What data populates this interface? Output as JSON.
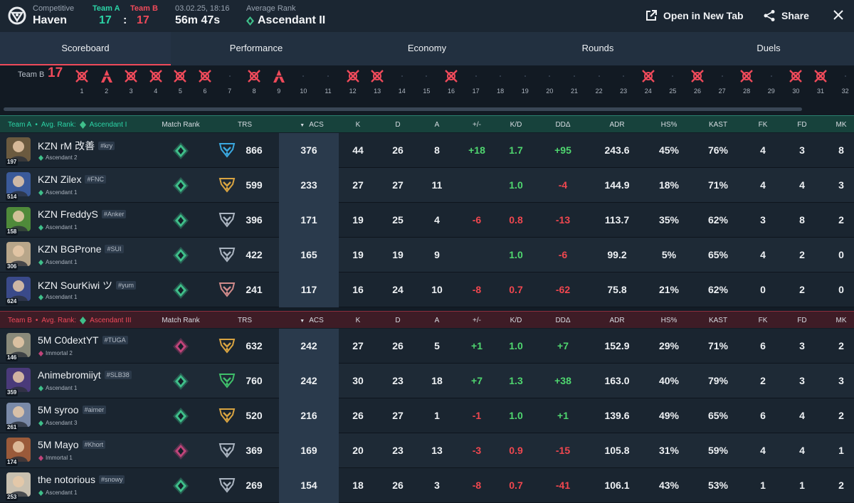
{
  "header": {
    "mode": "Competitive",
    "map": "Haven",
    "team_a_label": "Team A",
    "team_a_score": "17",
    "colon": ":",
    "team_b_label": "Team B",
    "team_b_score": "17",
    "date": "03.02.25, 18:16",
    "duration": "56m 47s",
    "avg_rank_label": "Average Rank",
    "avg_rank": "Ascendant II",
    "open_new_tab": "Open in New Tab",
    "share": "Share"
  },
  "tabs": [
    "Scoreboard",
    "Performance",
    "Economy",
    "Rounds",
    "Duels"
  ],
  "rounds": {
    "team_label": "Team B",
    "score": "17",
    "numbers": [
      "1",
      "2",
      "3",
      "4",
      "5",
      "6",
      "7",
      "8",
      "9",
      "10",
      "11",
      "12",
      "13",
      "14",
      "15",
      "16",
      "17",
      "18",
      "19",
      "20",
      "21",
      "22",
      "23",
      "24",
      "25",
      "26",
      "27",
      "28",
      "29",
      "30",
      "31",
      "32"
    ],
    "team_b_wins": [
      "elim",
      "defuse",
      "elim",
      "elim",
      "elim",
      "elim",
      "",
      "elim",
      "defuse",
      "",
      "",
      "elim",
      "elim",
      "",
      "",
      "elim",
      "",
      "",
      "",
      "",
      "",
      "",
      "",
      "elim",
      "",
      "elim",
      "",
      "elim",
      "",
      "elim",
      "elim",
      ""
    ]
  },
  "columns": {
    "match_rank": "Match Rank",
    "trs": "TRS",
    "acs": "ACS",
    "k": "K",
    "d": "D",
    "a": "A",
    "pm": "+/-",
    "kd": "K/D",
    "dd": "DDΔ",
    "adr": "ADR",
    "hs": "HS%",
    "kast": "KAST",
    "fk": "FK",
    "fd": "FD",
    "mk": "MK"
  },
  "team_a": {
    "label": "Team A",
    "avg_label": "Avg. Rank:",
    "avg_rank": "Ascendant I",
    "players": [
      {
        "name": "KZN rM 改善",
        "tag": "#kry",
        "rank": "Ascendant 2",
        "level": "197",
        "trs": "866",
        "acs": "376",
        "k": "44",
        "d": "26",
        "a": "8",
        "pm": "+18",
        "kd": "1.7",
        "dd": "+95",
        "adr": "243.6",
        "hs": "45%",
        "kast": "76%",
        "fk": "4",
        "fd": "3",
        "mk": "8",
        "rank_color": "#3fbf8a",
        "trs_color": "#3aa8e0",
        "av_color": "#6b5a3f"
      },
      {
        "name": "KZN Zilex",
        "tag": "#FNC",
        "rank": "Ascendant 1",
        "level": "514",
        "trs": "599",
        "acs": "233",
        "k": "27",
        "d": "27",
        "a": "11",
        "pm": "",
        "kd": "1.0",
        "dd": "-4",
        "adr": "144.9",
        "hs": "18%",
        "kast": "71%",
        "fk": "4",
        "fd": "4",
        "mk": "3",
        "rank_color": "#3fbf8a",
        "trs_color": "#d9a441",
        "av_color": "#3a5a9a"
      },
      {
        "name": "KZN FreddyS",
        "tag": "#Anker",
        "rank": "Ascendant 1",
        "level": "158",
        "trs": "396",
        "acs": "171",
        "k": "19",
        "d": "25",
        "a": "4",
        "pm": "-6",
        "kd": "0.8",
        "dd": "-13",
        "adr": "113.7",
        "hs": "35%",
        "kast": "62%",
        "fk": "3",
        "fd": "8",
        "mk": "2",
        "rank_color": "#3fbf8a",
        "trs_color": "#aab4c0",
        "av_color": "#4f8a3a"
      },
      {
        "name": "KZN BGProne",
        "tag": "#SUI",
        "rank": "Ascendant 1",
        "level": "306",
        "trs": "422",
        "acs": "165",
        "k": "19",
        "d": "19",
        "a": "9",
        "pm": "",
        "kd": "1.0",
        "dd": "-6",
        "adr": "99.2",
        "hs": "5%",
        "kast": "65%",
        "fk": "4",
        "fd": "2",
        "mk": "0",
        "rank_color": "#3fbf8a",
        "trs_color": "#aab4c0",
        "av_color": "#b8a68a"
      },
      {
        "name": "KZN SourKiwi ツ",
        "tag": "#yum",
        "rank": "Ascendant 1",
        "level": "624",
        "trs": "241",
        "acs": "117",
        "k": "16",
        "d": "24",
        "a": "10",
        "pm": "-8",
        "kd": "0.7",
        "dd": "-62",
        "adr": "75.8",
        "hs": "21%",
        "kast": "62%",
        "fk": "0",
        "fd": "2",
        "mk": "0",
        "rank_color": "#3fbf8a",
        "trs_color": "#d08a8a",
        "av_color": "#3a4a8a"
      }
    ]
  },
  "team_b": {
    "label": "Team B",
    "avg_label": "Avg. Rank:",
    "avg_rank": "Ascendant III",
    "players": [
      {
        "name": "5M C0dextYT",
        "tag": "#TUGA",
        "rank": "Immortal 2",
        "level": "146",
        "trs": "632",
        "acs": "242",
        "k": "27",
        "d": "26",
        "a": "5",
        "pm": "+1",
        "kd": "1.0",
        "dd": "+7",
        "adr": "152.9",
        "hs": "29%",
        "kast": "71%",
        "fk": "6",
        "fd": "3",
        "mk": "2",
        "rank_color": "#c0447a",
        "trs_color": "#d9a441",
        "av_color": "#8a8a7a"
      },
      {
        "name": "Animebromiiyt",
        "tag": "#SLB38",
        "rank": "Ascendant 1",
        "level": "359",
        "trs": "760",
        "acs": "242",
        "k": "30",
        "d": "23",
        "a": "18",
        "pm": "+7",
        "kd": "1.3",
        "dd": "+38",
        "adr": "163.0",
        "hs": "40%",
        "kast": "79%",
        "fk": "2",
        "fd": "3",
        "mk": "3",
        "rank_color": "#3fbf8a",
        "trs_color": "#3fbf6a",
        "av_color": "#4a3a7a"
      },
      {
        "name": "5M syroo",
        "tag": "#aimer",
        "rank": "Ascendant 3",
        "level": "261",
        "trs": "520",
        "acs": "216",
        "k": "26",
        "d": "27",
        "a": "1",
        "pm": "-1",
        "kd": "1.0",
        "dd": "+1",
        "adr": "139.6",
        "hs": "49%",
        "kast": "65%",
        "fk": "6",
        "fd": "4",
        "mk": "2",
        "rank_color": "#3fbf8a",
        "trs_color": "#d9a441",
        "av_color": "#7a8aa8"
      },
      {
        "name": "5M Mayo",
        "tag": "#Khort",
        "rank": "Immortal 1",
        "level": "174",
        "trs": "369",
        "acs": "169",
        "k": "20",
        "d": "23",
        "a": "13",
        "pm": "-3",
        "kd": "0.9",
        "dd": "-15",
        "adr": "105.8",
        "hs": "31%",
        "kast": "59%",
        "fk": "4",
        "fd": "4",
        "mk": "1",
        "rank_color": "#c0447a",
        "trs_color": "#aab4c0",
        "av_color": "#9a5a3a"
      },
      {
        "name": "the notorious",
        "tag": "#snowy",
        "rank": "Ascendant 1",
        "level": "253",
        "trs": "269",
        "acs": "154",
        "k": "18",
        "d": "26",
        "a": "3",
        "pm": "-8",
        "kd": "0.7",
        "dd": "-41",
        "adr": "106.1",
        "hs": "43%",
        "kast": "53%",
        "fk": "1",
        "fd": "1",
        "mk": "2",
        "rank_color": "#3fbf8a",
        "trs_color": "#aab4c0",
        "av_color": "#c8c0b0"
      }
    ]
  }
}
